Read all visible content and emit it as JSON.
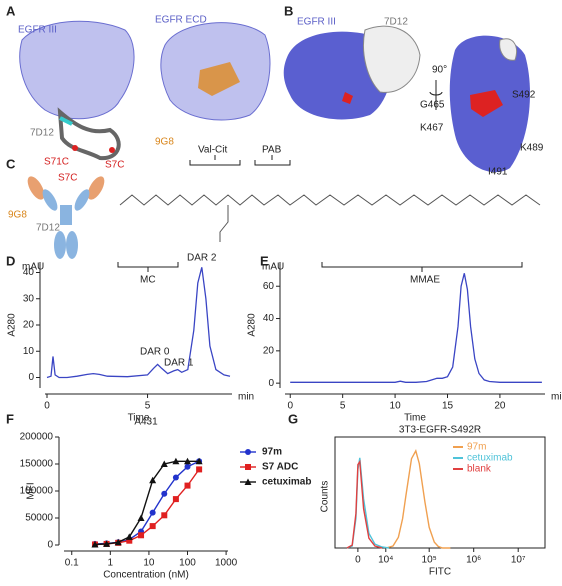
{
  "figure": {
    "panel_letters": [
      "A",
      "B",
      "C",
      "D",
      "E",
      "F",
      "G"
    ],
    "a": {
      "egfr3": "EGFR III",
      "egfr_ecd": "EGFR ECD",
      "nb1": "7D12",
      "s71c": "S71C",
      "s7c": "S7C",
      "nb2": "9G8"
    },
    "b": {
      "egfr3": "EGFR III",
      "nb1": "7D12",
      "rot": "90°",
      "g465": "G465",
      "k467": "K467",
      "s492": "S492",
      "k489": "K489",
      "i491": "I491"
    },
    "c": {
      "nb2": "9G8",
      "s7c": "S7C",
      "nb1": "7D12",
      "valcit": "Val-Cit",
      "pab": "PAB",
      "mc": "MC",
      "mmae": "MMAE"
    }
  },
  "chart_data": [
    {
      "type": "line",
      "xlabel": "Time",
      "x_unit": "min",
      "ylabel": "A280",
      "y_unit": "mAU",
      "annotations": [
        "DAR 0",
        "DAR 1",
        "DAR 2"
      ],
      "xlim": [
        -0.1,
        9.2
      ],
      "ylim": [
        -4,
        44
      ],
      "xticks": [
        0,
        5
      ],
      "yticks": [
        0,
        10,
        20,
        30,
        40
      ],
      "color": "#3a45c4",
      "x": [
        0,
        0.2,
        0.3,
        0.4,
        0.6,
        1.0,
        1.5,
        2.0,
        2.3,
        2.6,
        3.0,
        4.0,
        5.0,
        5.3,
        5.5,
        5.7,
        6.0,
        6.3,
        6.5,
        6.7,
        7.0,
        7.3,
        7.5,
        7.7,
        7.9,
        8.1,
        8.4,
        8.8,
        9.1
      ],
      "values": [
        0,
        0.5,
        8,
        1,
        0,
        0,
        0.5,
        1.2,
        1.5,
        1.2,
        0.5,
        0.3,
        1,
        3.5,
        5,
        3.5,
        1.5,
        2.5,
        3,
        2,
        3,
        18,
        36,
        42,
        30,
        12,
        3,
        1,
        0.5
      ]
    },
    {
      "type": "line",
      "xlabel": "Time",
      "x_unit": "min",
      "ylabel": "A280",
      "y_unit": "mAU",
      "xlim": [
        -0.5,
        24.3
      ],
      "ylim": [
        -3,
        75
      ],
      "xticks": [
        0,
        5,
        10,
        15,
        20
      ],
      "yticks": [
        0,
        20,
        40,
        60
      ],
      "color": "#3a45c4",
      "x": [
        0,
        2,
        4,
        6,
        8,
        10,
        10.5,
        11,
        12,
        13,
        13.5,
        14,
        14.5,
        15,
        15.5,
        16,
        16.3,
        16.6,
        16.9,
        17.2,
        17.6,
        18,
        18.5,
        19,
        20,
        22,
        24
      ],
      "values": [
        0.5,
        0.5,
        0.5,
        0.5,
        0.5,
        0.5,
        1.2,
        0.5,
        0.5,
        1,
        2,
        3,
        3,
        4,
        10,
        35,
        60,
        68,
        58,
        35,
        15,
        6,
        2,
        1,
        0.5,
        0.5,
        0.5
      ]
    },
    {
      "type": "scatter",
      "title": "A431",
      "xlabel": "Concentration (nM)",
      "ylabel": "MFI",
      "xscale": "log",
      "xlim": [
        0.063,
        1120
      ],
      "ylim": [
        0,
        200000
      ],
      "xticks": [
        0.1,
        1,
        10,
        100,
        1000
      ],
      "yticks": [
        0,
        50000,
        100000,
        150000,
        200000
      ],
      "x": [
        0.4,
        0.8,
        1.6,
        3.1,
        6.25,
        12.5,
        25,
        50,
        100,
        200
      ],
      "series": [
        {
          "name": "97m",
          "color": "#2233cc",
          "marker": "circle",
          "values": [
            2000,
            3000,
            5000,
            10000,
            25000,
            60000,
            95000,
            125000,
            145000,
            155000
          ]
        },
        {
          "name": "S7 ADC",
          "color": "#e02020",
          "marker": "square",
          "values": [
            1000,
            2000,
            4000,
            8000,
            18000,
            35000,
            55000,
            85000,
            110000,
            140000
          ]
        },
        {
          "name": "cetuximab",
          "color": "#111111",
          "marker": "triangle",
          "values": [
            1000,
            2000,
            5000,
            15000,
            50000,
            120000,
            150000,
            155000,
            155000,
            155000
          ]
        }
      ]
    },
    {
      "type": "line",
      "title": "3T3-EGFR-S492R",
      "xlabel": "FITC",
      "ylabel": "Counts",
      "xscale": "asinh",
      "xlim": [
        -7400,
        40000000
      ],
      "ylim": [
        0,
        105
      ],
      "xticks": [
        0,
        {
          "value": 10000,
          "label": "10⁴"
        },
        {
          "value": 100000,
          "label": "10⁵"
        },
        {
          "value": 1000000,
          "label": "10⁶"
        },
        {
          "value": 10000000,
          "label": "10⁷"
        }
      ],
      "series": [
        {
          "name": "97m",
          "color": "#f0a050",
          "x": [
            10000,
            15000,
            20000,
            25000,
            30000,
            40000,
            50000,
            60000,
            80000,
            100000,
            130000,
            160000,
            200000,
            300000
          ],
          "values": [
            0,
            2,
            11,
            30,
            54,
            91,
            99,
            86,
            47,
            21,
            6,
            1.5,
            0,
            0
          ]
        },
        {
          "name": "cetuximab",
          "color": "#4fc3d9",
          "x": [
            -3000,
            -1500,
            -500,
            0,
            500,
            1500,
            3000,
            5000,
            8000,
            12000
          ],
          "values": [
            0,
            2,
            30,
            80,
            92,
            50,
            15,
            4,
            1,
            0
          ]
        },
        {
          "name": "blank",
          "color": "#e04040",
          "x": [
            -3000,
            -1500,
            -500,
            0,
            500,
            1500,
            3000,
            5000,
            8000
          ],
          "values": [
            0,
            3,
            35,
            85,
            88,
            40,
            10,
            2,
            0
          ]
        }
      ]
    }
  ]
}
